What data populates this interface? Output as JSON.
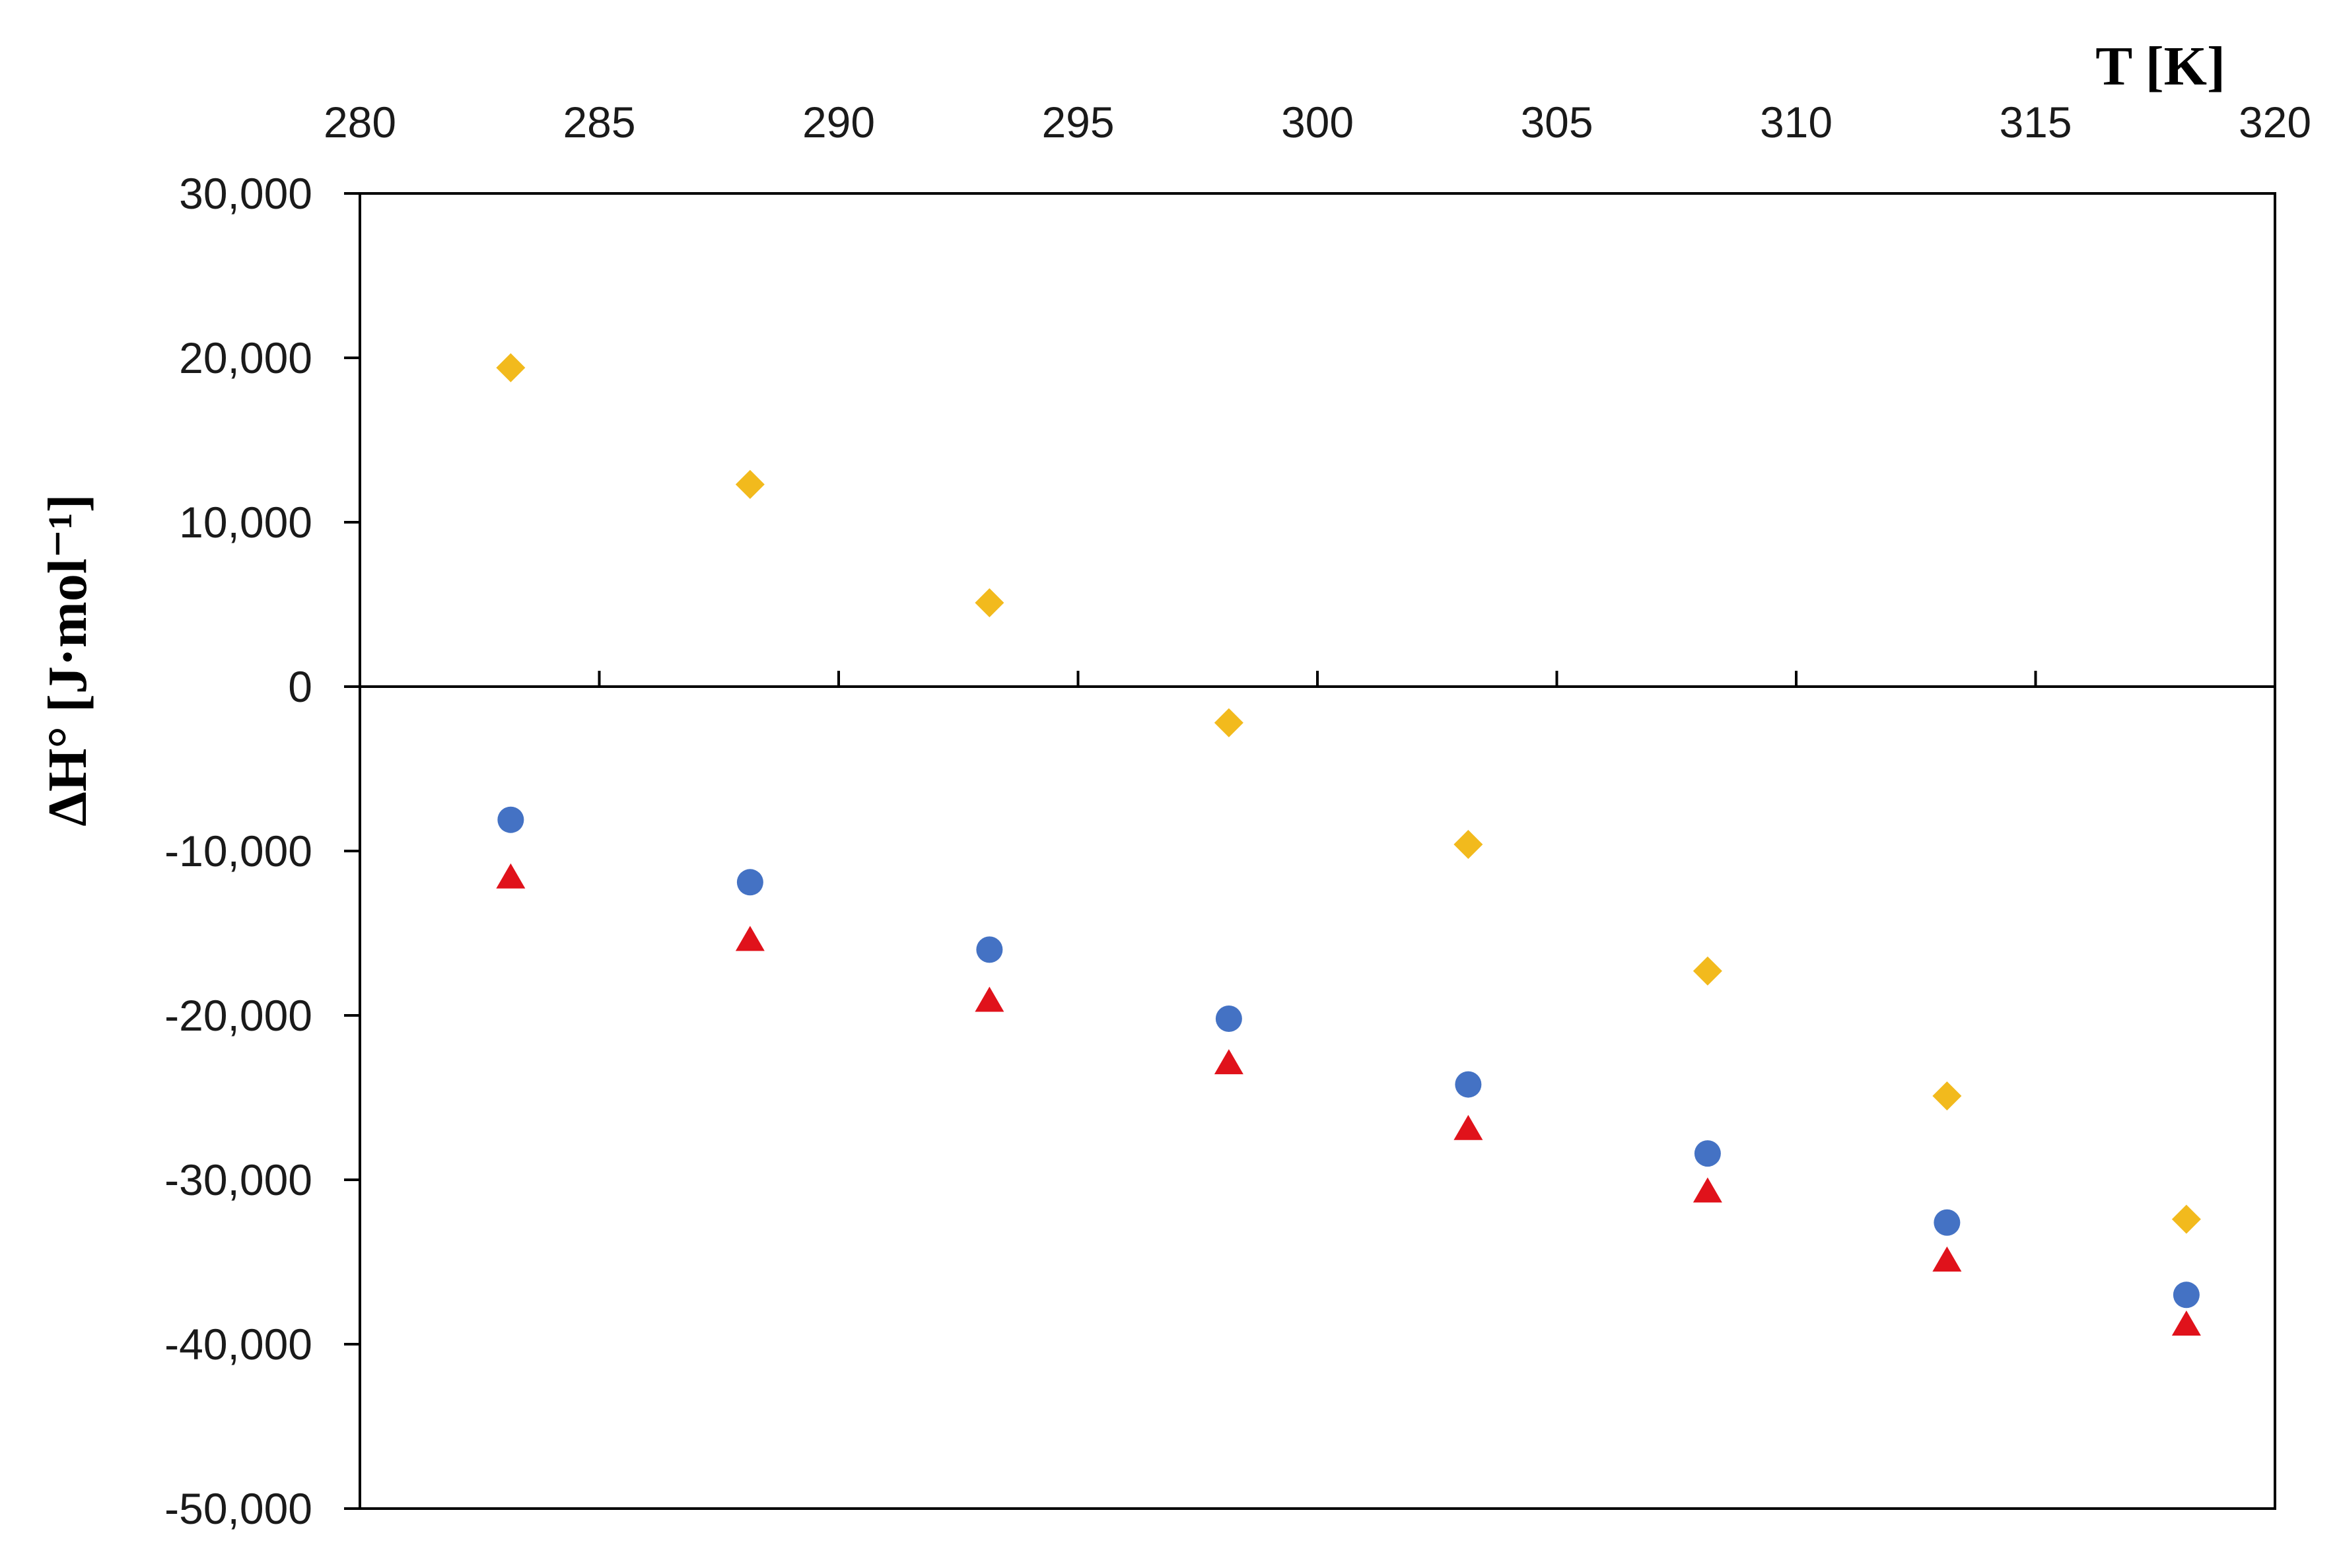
{
  "chart_data": {
    "type": "scatter",
    "title": "",
    "xlabel": "T [K]",
    "ylabel": "ΔH° [J·mol⁻¹]",
    "x_axis_position": "top",
    "xlim": [
      280,
      320
    ],
    "ylim": [
      -50000,
      30000
    ],
    "x_ticks": [
      280,
      285,
      290,
      295,
      300,
      305,
      310,
      315,
      320
    ],
    "x_tick_labels": [
      "280",
      "285",
      "290",
      "295",
      "300",
      "305",
      "310",
      "315",
      "320"
    ],
    "y_ticks": [
      30000,
      20000,
      10000,
      0,
      -10000,
      -20000,
      -30000,
      -40000,
      -50000
    ],
    "y_tick_labels": [
      "30,000",
      "20,000",
      "10,000",
      "0",
      "-10,000",
      "-20,000",
      "-30,000",
      "-40,000",
      "-50,000"
    ],
    "grid": false,
    "legend": "none",
    "series": [
      {
        "marker": "diamond",
        "color": "#F2BA1D",
        "x": [
          283.15,
          288.15,
          293.15,
          298.15,
          303.15,
          308.15,
          313.15,
          318.15
        ],
        "y": [
          19400,
          12300,
          5100,
          -2200,
          -9600,
          -17300,
          -24900,
          -32400
        ]
      },
      {
        "marker": "circle",
        "color": "#4472C4",
        "x": [
          283.15,
          288.15,
          293.15,
          298.15,
          303.15,
          308.15,
          313.15,
          318.15
        ],
        "y": [
          -8100,
          -11900,
          -16000,
          -20200,
          -24200,
          -28400,
          -32600,
          -37000
        ]
      },
      {
        "marker": "triangle",
        "color": "#E0121B",
        "x": [
          283.15,
          288.15,
          293.15,
          298.15,
          303.15,
          308.15,
          313.15,
          318.15
        ],
        "y": [
          -11700,
          -15500,
          -19200,
          -23000,
          -27000,
          -30800,
          -35000,
          -38900
        ]
      }
    ]
  }
}
